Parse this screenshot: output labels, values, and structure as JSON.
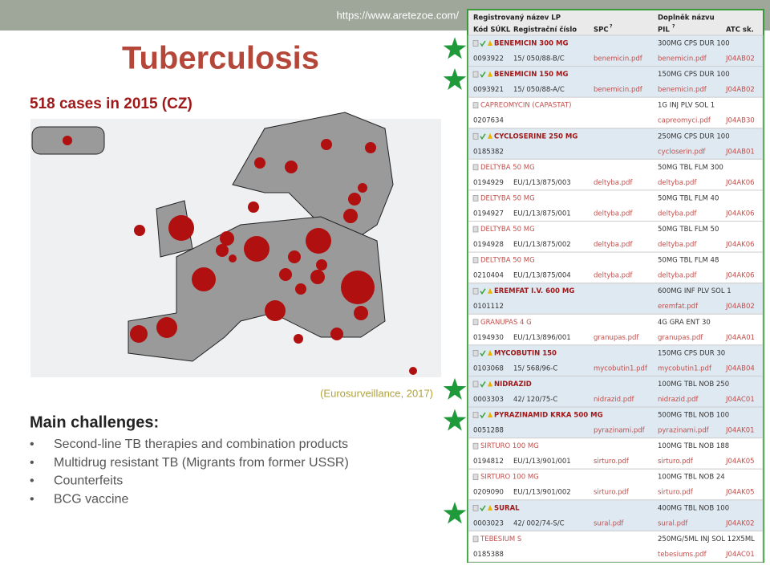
{
  "slide": {
    "url": "https://www.aretezoe.com/",
    "title": "Tuberculosis",
    "subtitle": "518 cases in 2015 (CZ)",
    "source": "(Eurosurveillance, 2017)",
    "challenges_heading": "Main challenges:",
    "challenges": [
      "Second-line TB therapies and combination products",
      "Multidrug resistant TB (Migrants from former USSR)",
      "Counterfeits",
      "BCG vaccine"
    ]
  },
  "table": {
    "header": {
      "name": "Registrovaný název LP",
      "supplement": "Doplněk názvu",
      "code": "Kód SÚKL",
      "reg": "Registrační číslo",
      "spc": "SPC",
      "spc_sup": "?",
      "pil": "PIL",
      "pil_sup": "?",
      "atc": "ATC sk."
    },
    "rows": [
      {
        "name": "BENEMICIN 300 MG",
        "supplement": "300MG CPS DUR 100",
        "code": "0093922",
        "reg": "15/ 050/88-B/C",
        "spc": "benemicin.pdf",
        "pil": "benemicin.pdf",
        "atc": "J04AB02",
        "bold": true,
        "starred": true
      },
      {
        "name": "BENEMICIN 150 MG",
        "supplement": "150MG CPS DUR 100",
        "code": "0093921",
        "reg": "15/ 050/88-A/C",
        "spc": "benemicin.pdf",
        "pil": "benemicin.pdf",
        "atc": "J04AB02",
        "bold": true,
        "starred": true
      },
      {
        "name": "CAPREOMYCIN (CAPASTAT)",
        "supplement": "1G INJ PLV SOL 1",
        "code": "0207634",
        "reg": null,
        "spc": null,
        "pil": "capreomyci.pdf",
        "atc": "J04AB30",
        "bold": false,
        "starred": false
      },
      {
        "name": "CYCLOSERINE 250 MG",
        "supplement": "250MG CPS DUR 100",
        "code": "0185382",
        "reg": null,
        "spc": null,
        "pil": "cycloserin.pdf",
        "atc": "J04AB01",
        "bold": true,
        "starred": false
      },
      {
        "name": "DELTYBA 50 MG",
        "supplement": "50MG TBL FLM 300",
        "code": "0194929",
        "reg": "EU/1/13/875/003",
        "spc": "deltyba.pdf",
        "pil": "deltyba.pdf",
        "atc": "J04AK06",
        "bold": false,
        "starred": false
      },
      {
        "name": "DELTYBA 50 MG",
        "supplement": "50MG TBL FLM 40",
        "code": "0194927",
        "reg": "EU/1/13/875/001",
        "spc": "deltyba.pdf",
        "pil": "deltyba.pdf",
        "atc": "J04AK06",
        "bold": false,
        "starred": false
      },
      {
        "name": "DELTYBA 50 MG",
        "supplement": "50MG TBL FLM 50",
        "code": "0194928",
        "reg": "EU/1/13/875/002",
        "spc": "deltyba.pdf",
        "pil": "deltyba.pdf",
        "atc": "J04AK06",
        "bold": false,
        "starred": false
      },
      {
        "name": "DELTYBA 50 MG",
        "supplement": "50MG TBL FLM 48",
        "code": "0210404",
        "reg": "EU/1/13/875/004",
        "spc": "deltyba.pdf",
        "pil": "deltyba.pdf",
        "atc": "J04AK06",
        "bold": false,
        "starred": false
      },
      {
        "name": "EREMFAT I.V. 600 MG",
        "supplement": "600MG INF PLV SOL 1",
        "code": "0101112",
        "reg": null,
        "spc": null,
        "pil": "eremfat.pdf",
        "atc": "J04AB02",
        "bold": true,
        "starred": false
      },
      {
        "name": "GRANUPAS 4 G",
        "supplement": "4G GRA ENT 30",
        "code": "0194930",
        "reg": "EU/1/13/896/001",
        "spc": "granupas.pdf",
        "pil": "granupas.pdf",
        "atc": "J04AA01",
        "bold": false,
        "starred": false
      },
      {
        "name": "MYCOBUTIN 150",
        "supplement": "150MG CPS DUR 30",
        "code": "0103068",
        "reg": "15/ 568/96-C",
        "spc": "mycobutin1.pdf",
        "pil": "mycobutin1.pdf",
        "atc": "J04AB04",
        "bold": true,
        "starred": false
      },
      {
        "name": "NIDRAZID",
        "supplement": "100MG TBL NOB 250",
        "code": "0003303",
        "reg": "42/ 120/75-C",
        "spc": "nidrazid.pdf",
        "pil": "nidrazid.pdf",
        "atc": "J04AC01",
        "bold": true,
        "starred": true
      },
      {
        "name": "PYRAZINAMID KRKA 500 MG",
        "supplement": "500MG TBL NOB 100",
        "code": "0051288",
        "reg": null,
        "spc": "pyrazinami.pdf",
        "pil": "pyrazinami.pdf",
        "atc": "J04AK01",
        "bold": true,
        "starred": true
      },
      {
        "name": "SIRTURO 100 MG",
        "supplement": "100MG TBL NOB 188",
        "code": "0194812",
        "reg": "EU/1/13/901/001",
        "spc": "sirturo.pdf",
        "pil": "sirturo.pdf",
        "atc": "J04AK05",
        "bold": false,
        "starred": false
      },
      {
        "name": "SIRTURO 100 MG",
        "supplement": "100MG TBL NOB 24",
        "code": "0209090",
        "reg": "EU/1/13/901/002",
        "spc": "sirturo.pdf",
        "pil": "sirturo.pdf",
        "atc": "J04AK05",
        "bold": false,
        "starred": false
      },
      {
        "name": "SURAL",
        "supplement": "400MG TBL NOB 100",
        "code": "0003023",
        "reg": "42/ 002/74-S/C",
        "spc": "sural.pdf",
        "pil": "sural.pdf",
        "atc": "J04AK02",
        "bold": true,
        "starred": true
      },
      {
        "name": "TEBESIUM S",
        "supplement": "250MG/5ML INJ SOL 12X5ML",
        "code": "0185388",
        "reg": null,
        "spc": null,
        "pil": "tebesiums.pdf",
        "atc": "J04AC01",
        "bold": false,
        "starred": false
      }
    ]
  }
}
